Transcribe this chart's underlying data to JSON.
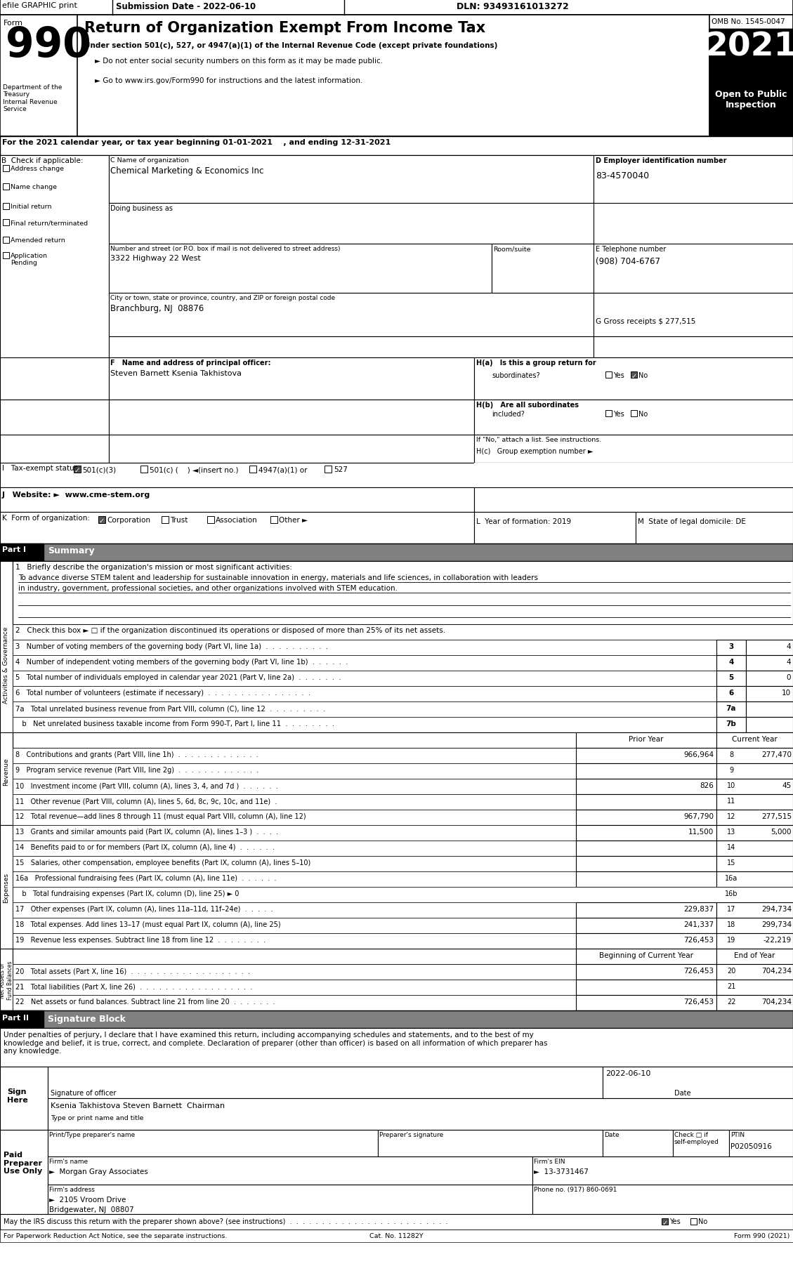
{
  "title": "Return of Organization Exempt From Income Tax",
  "year": "2021",
  "omb": "OMB No. 1545-0047",
  "open_to_public": "Open to Public\nInspection",
  "efile_text": "efile GRAPHIC print",
  "submission_date": "Submission Date - 2022-06-10",
  "dln": "DLN: 93493161013272",
  "form_number": "990",
  "under_section": "Under section 501(c), 527, or 4947(a)(1) of the Internal Revenue Code (except private foundations)",
  "do_not_enter": "► Do not enter social security numbers on this form as it may be made public.",
  "go_to": "► Go to www.irs.gov/Form990 for instructions and the latest information.",
  "dept": "Department of the\nTreasury\nInternal Revenue\nService",
  "cal_year": "For the 2021 calendar year, or tax year beginning 01-01-2021    , and ending 12-31-2021",
  "b_label": "B  Check if applicable:",
  "check_items": [
    "Address change",
    "Name change",
    "Initial return",
    "Final return/terminated",
    "Amended return",
    "Application\nPending"
  ],
  "check_filled": [
    false,
    false,
    false,
    false,
    false,
    false
  ],
  "c_label": "C Name of organization",
  "org_name": "Chemical Marketing & Economics Inc",
  "doing_business": "Doing business as",
  "address_label": "Number and street (or P.O. box if mail is not delivered to street address)",
  "room_suite": "Room/suite",
  "address": "3322 Highway 22 West",
  "city_label": "City or town, state or province, country, and ZIP or foreign postal code",
  "city": "Branchburg, NJ  08876",
  "d_label": "D Employer identification number",
  "ein": "83-4570040",
  "e_label": "E Telephone number",
  "phone": "(908) 704-6767",
  "g_label": "G Gross receipts $ 277,515",
  "f_label": "F   Name and address of principal officer:",
  "principal": "Steven Barnett Ksenia Takhistova",
  "ha_label": "H(a)   Is this a group return for",
  "ha_sub": "subordinates?",
  "ha_yes": "Yes",
  "ha_no": "No",
  "hb_label": "H(b)   Are all subordinates",
  "hb_sub": "included?",
  "hb_yes": "Yes",
  "hb_no": "No",
  "if_no": "If \"No,\" attach a list. See instructions.",
  "hc_label": "H(c)   Group exemption number ►",
  "i_label": "I   Tax-exempt status:",
  "i_501c3": "501(c)(3)",
  "i_501c": "501(c) (    ) ◄(insert no.)",
  "i_4947": "4947(a)(1) or",
  "i_527": "527",
  "j_label": "J   Website: ►",
  "website": "www.cme-stem.org",
  "k_label": "K  Form of organization:",
  "k_corp": "Corporation",
  "k_trust": "Trust",
  "k_assoc": "Association",
  "k_other": "Other ►",
  "l_label": "L  Year of formation: 2019",
  "m_label": "M  State of legal domicile: DE",
  "part1_label": "Part I",
  "part1_title": "Summary",
  "item1_label": "1   Briefly describe the organization's mission or most significant activities:",
  "item1_text1": "To advance diverse STEM talent and leadership for sustainable innovation in energy, materials and life sciences, in collaboration with leaders",
  "item1_text2": "in industry, government, professional societies, and other organizations involved with STEM education.",
  "item2": "2   Check this box ► □ if the organization discontinued its operations or disposed of more than 25% of its net assets.",
  "item3": "3   Number of voting members of the governing body (Part VI, line 1a)  .  .  .  .  .  .  .  .  .  .",
  "item4": "4   Number of independent voting members of the governing body (Part VI, line 1b)  .  .  .  .  .  .",
  "item5": "5   Total number of individuals employed in calendar year 2021 (Part V, line 2a)  .  .  .  .  .  .  .",
  "item6": "6   Total number of volunteers (estimate if necessary)  .  .  .  .  .  .  .  .  .  .  .  .  .  .  .  .",
  "item7a": "7a   Total unrelated business revenue from Part VIII, column (C), line 12  .  .  .  .  .  .  .  .  .",
  "item7b": "   b   Net unrelated business taxable income from Form 990-T, Part I, line 11  .  .  .  .  .  .  .  .",
  "line_nums_left": [
    "3",
    "4",
    "5",
    "6",
    "7a",
    "7b"
  ],
  "line_vals_left": [
    "4",
    "4",
    "0",
    "10",
    "",
    ""
  ],
  "revenue_header_prior": "Prior Year",
  "revenue_header_current": "Current Year",
  "item8": "8   Contributions and grants (Part VIII, line 1h)  .  .  .  .  .  .  .  .  .  .  .  .  .",
  "item9": "9   Program service revenue (Part VIII, line 2g)  .  .  .  .  .  .  .  .  .  .  .  .  .",
  "item10": "10   Investment income (Part VIII, column (A), lines 3, 4, and 7d )  .  .  .  .  .  .",
  "item11": "11   Other revenue (Part VIII, column (A), lines 5, 6d, 8c, 9c, 10c, and 11e)  .",
  "item12": "12   Total revenue—add lines 8 through 11 (must equal Part VIII, column (A), line 12)",
  "item13": "13   Grants and similar amounts paid (Part IX, column (A), lines 1–3 )  .  .  .  .",
  "item14": "14   Benefits paid to or for members (Part IX, column (A), line 4)  .  .  .  .  .  .",
  "item15": "15   Salaries, other compensation, employee benefits (Part IX, column (A), lines 5–10)",
  "item16a": "16a   Professional fundraising fees (Part IX, column (A), line 11e)  .  .  .  .  .  .",
  "item16b": "   b   Total fundraising expenses (Part IX, column (D), line 25) ► 0",
  "item17": "17   Other expenses (Part IX, column (A), lines 11a–11d, 11f–24e)  .  .  .  .  .",
  "item18": "18   Total expenses. Add lines 13–17 (must equal Part IX, column (A), line 25)",
  "item19": "19   Revenue less expenses. Subtract line 18 from line 12  .  .  .  .  .  .  .  .",
  "revenue_prior": [
    "966,964",
    "",
    "826",
    "",
    "967,790",
    "11,500",
    "",
    "",
    "",
    "",
    "229,837",
    "241,337",
    "726,453"
  ],
  "revenue_current": [
    "277,470",
    "",
    "45",
    "",
    "277,515",
    "5,000",
    "",
    "",
    "",
    "",
    "294,734",
    "299,734",
    "-22,219"
  ],
  "revenue_line_nums": [
    "8",
    "9",
    "10",
    "11",
    "12",
    "13",
    "14",
    "15",
    "16a",
    "16b",
    "17",
    "18",
    "19"
  ],
  "net_assets_header_begin": "Beginning of Current Year",
  "net_assets_header_end": "End of Year",
  "item20": "20   Total assets (Part X, line 16)  .  .  .  .  .  .  .  .  .  .  .  .  .  .  .  .  .  .  .",
  "item21": "21   Total liabilities (Part X, line 26)  .  .  .  .  .  .  .  .  .  .  .  .  .  .  .  .  .  .",
  "item22": "22   Net assets or fund balances. Subtract line 21 from line 20  .  .  .  .  .  .  .",
  "net_begin": [
    "726,453",
    "",
    "726,453"
  ],
  "net_end": [
    "704,234",
    "",
    "704,234"
  ],
  "net_line_nums": [
    "20",
    "21",
    "22"
  ],
  "part2_label": "Part II",
  "part2_title": "Signature Block",
  "sig_penalty": "Under penalties of perjury, I declare that I have examined this return, including accompanying schedules and statements, and to the best of my\nknowledge and belief, it is true, correct, and complete. Declaration of preparer (other than officer) is based on all information of which preparer has\nany knowledge.",
  "sign_here": "Sign\nHere",
  "sig_date": "2022-06-10",
  "sig_date_label": "Date",
  "sig_officer": "Signature of officer",
  "sig_name": "Ksenia Takhistova Steven Barnett  Chairman",
  "sig_type": "Type or print name and title",
  "paid_preparer": "Paid\nPreparer\nUse Only",
  "preparer_name_label": "Print/Type preparer's name",
  "preparer_sig_label": "Preparer's signature",
  "preparer_date_label": "Date",
  "check_label": "Check □ if\nself-employed",
  "ptin_label": "PTIN",
  "ptin": "P02050916",
  "firm_name_label": "Firm's name",
  "firm_name": "►  Morgan Gray Associates",
  "firm_ein_label": "Firm's EIN",
  "firm_ein": "►  13-3731467",
  "firm_addr_label": "Firm's address",
  "firm_addr": "►  2105 Vroom Drive",
  "firm_city": "Bridgewater, NJ  08807",
  "phone_label": "Phone no. (917) 860-0691",
  "discuss_label": "May the IRS discuss this return with the preparer shown above? (see instructions)  .  .  .  .  .  .  .  .  .  .  .  .  .  .  .  .  .  .  .  .  .  .  .  .  .",
  "discuss_yes": "Yes",
  "discuss_no": "No",
  "paperwork_label": "For Paperwork Reduction Act Notice, see the separate instructions.",
  "cat_no": "Cat. No. 11282Y",
  "form_bottom": "Form 990 (2021)",
  "side_label_ag": "Activities & Governance",
  "side_label_rev": "Revenue",
  "side_label_exp": "Expenses",
  "side_label_net": "Net Assets or\nFund Balances"
}
